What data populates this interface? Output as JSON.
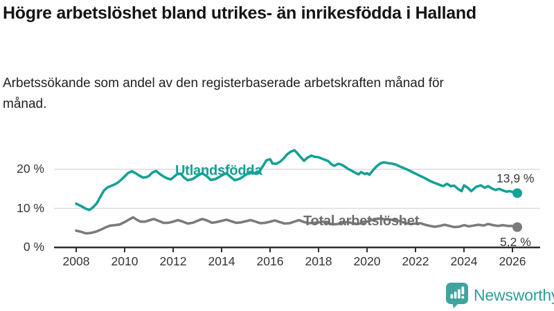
{
  "header": {
    "title": "Högre arbetslöshet bland utrikes- än inrikesfödda i Halland",
    "subtitle": "Arbetssökande som andel av den registerbaserade arbetskraften månad för månad."
  },
  "branding": {
    "logo_text": "Newsworthy",
    "logo_icon": "bar-chart-speech-bubble",
    "logo_color": "#41a39d",
    "logo_text_color": "#2f9c96"
  },
  "colors": {
    "teal": "#14a096",
    "gray": "#7b7b7b",
    "gray_label": "#6e6e6e",
    "grid": "#dcdcdc",
    "axis": "#2e2e2e",
    "tick_text": "#333333"
  },
  "chart_data": {
    "type": "line",
    "title": "Högre arbetslöshet bland utrikes- än inrikesfödda i Halland",
    "subtitle": "Arbetssökande som andel av den registerbaserade arbetskraften månad för månad.",
    "xlabel": "",
    "ylabel": "",
    "grid": "horizontal",
    "xlim": [
      2007.1,
      2027
    ],
    "ylim": [
      0,
      26
    ],
    "x_ticks": [
      2008,
      2010,
      2012,
      2014,
      2016,
      2018,
      2020,
      2022,
      2024,
      2026
    ],
    "y_ticks": [
      {
        "value": 0,
        "label": "0 %"
      },
      {
        "value": 10,
        "label": "10 %"
      },
      {
        "value": 20,
        "label": "20 %"
      }
    ],
    "series": [
      {
        "name": "Utlandsfödda",
        "color": "#14a096",
        "end_label": "13,9 %",
        "end_value": 13.9,
        "points": [
          [
            2008.0,
            11.2
          ],
          [
            2008.2,
            10.6
          ],
          [
            2008.4,
            9.9
          ],
          [
            2008.55,
            9.6
          ],
          [
            2008.7,
            10.3
          ],
          [
            2008.85,
            11.3
          ],
          [
            2009.0,
            13.0
          ],
          [
            2009.15,
            14.6
          ],
          [
            2009.3,
            15.4
          ],
          [
            2009.5,
            15.9
          ],
          [
            2009.7,
            16.5
          ],
          [
            2009.85,
            17.3
          ],
          [
            2010.0,
            18.2
          ],
          [
            2010.15,
            19.1
          ],
          [
            2010.3,
            19.5
          ],
          [
            2010.45,
            19.0
          ],
          [
            2010.6,
            18.4
          ],
          [
            2010.75,
            17.9
          ],
          [
            2010.9,
            18.0
          ],
          [
            2011.0,
            18.3
          ],
          [
            2011.15,
            19.2
          ],
          [
            2011.3,
            19.6
          ],
          [
            2011.45,
            18.8
          ],
          [
            2011.6,
            18.2
          ],
          [
            2011.75,
            17.7
          ],
          [
            2011.9,
            17.4
          ],
          [
            2012.0,
            17.9
          ],
          [
            2012.15,
            18.7
          ],
          [
            2012.3,
            18.9
          ],
          [
            2012.45,
            17.9
          ],
          [
            2012.6,
            17.2
          ],
          [
            2012.8,
            17.5
          ],
          [
            2013.0,
            18.3
          ],
          [
            2013.2,
            19.0
          ],
          [
            2013.4,
            18.2
          ],
          [
            2013.55,
            17.3
          ],
          [
            2013.75,
            17.5
          ],
          [
            2014.0,
            18.4
          ],
          [
            2014.2,
            19.0
          ],
          [
            2014.4,
            17.9
          ],
          [
            2014.55,
            17.2
          ],
          [
            2014.75,
            17.6
          ],
          [
            2015.0,
            18.6
          ],
          [
            2015.2,
            19.4
          ],
          [
            2015.4,
            18.9
          ],
          [
            2015.55,
            19.4
          ],
          [
            2015.7,
            20.8
          ],
          [
            2015.85,
            22.3
          ],
          [
            2016.0,
            22.6
          ],
          [
            2016.1,
            21.5
          ],
          [
            2016.25,
            21.4
          ],
          [
            2016.4,
            21.9
          ],
          [
            2016.55,
            22.7
          ],
          [
            2016.7,
            23.8
          ],
          [
            2016.85,
            24.5
          ],
          [
            2017.0,
            24.9
          ],
          [
            2017.1,
            24.3
          ],
          [
            2017.25,
            23.2
          ],
          [
            2017.4,
            22.2
          ],
          [
            2017.55,
            23.0
          ],
          [
            2017.7,
            23.5
          ],
          [
            2017.85,
            23.2
          ],
          [
            2018.0,
            23.1
          ],
          [
            2018.2,
            22.6
          ],
          [
            2018.4,
            22.1
          ],
          [
            2018.55,
            21.2
          ],
          [
            2018.65,
            20.9
          ],
          [
            2018.8,
            21.4
          ],
          [
            2018.9,
            21.3
          ],
          [
            2019.0,
            21.0
          ],
          [
            2019.2,
            20.2
          ],
          [
            2019.4,
            19.5
          ],
          [
            2019.55,
            19.0
          ],
          [
            2019.65,
            18.7
          ],
          [
            2019.75,
            19.3
          ],
          [
            2019.9,
            18.8
          ],
          [
            2020.0,
            19.0
          ],
          [
            2020.1,
            18.6
          ],
          [
            2020.25,
            19.8
          ],
          [
            2020.4,
            20.8
          ],
          [
            2020.55,
            21.5
          ],
          [
            2020.7,
            21.8
          ],
          [
            2020.85,
            21.6
          ],
          [
            2021.0,
            21.5
          ],
          [
            2021.2,
            21.2
          ],
          [
            2021.4,
            20.6
          ],
          [
            2021.6,
            20.1
          ],
          [
            2021.8,
            19.5
          ],
          [
            2022.0,
            18.9
          ],
          [
            2022.2,
            18.3
          ],
          [
            2022.4,
            17.7
          ],
          [
            2022.6,
            17.0
          ],
          [
            2022.8,
            16.5
          ],
          [
            2023.0,
            16.0
          ],
          [
            2023.15,
            15.7
          ],
          [
            2023.3,
            16.3
          ],
          [
            2023.45,
            15.7
          ],
          [
            2023.6,
            15.8
          ],
          [
            2023.75,
            15.0
          ],
          [
            2023.9,
            14.4
          ],
          [
            2024.0,
            15.9
          ],
          [
            2024.15,
            15.3
          ],
          [
            2024.3,
            14.4
          ],
          [
            2024.5,
            15.5
          ],
          [
            2024.7,
            15.9
          ],
          [
            2024.85,
            15.3
          ],
          [
            2025.0,
            15.7
          ],
          [
            2025.15,
            15.1
          ],
          [
            2025.3,
            14.7
          ],
          [
            2025.45,
            15.0
          ],
          [
            2025.6,
            14.6
          ],
          [
            2025.75,
            14.3
          ],
          [
            2025.9,
            14.4
          ],
          [
            2026.0,
            14.2
          ],
          [
            2026.2,
            13.9
          ]
        ]
      },
      {
        "name": "Total arbetslöshet",
        "color": "#7b7b7b",
        "end_label": "5,2 %",
        "end_value": 5.2,
        "points": [
          [
            2008.0,
            4.3
          ],
          [
            2008.2,
            4.0
          ],
          [
            2008.4,
            3.6
          ],
          [
            2008.6,
            3.7
          ],
          [
            2008.8,
            4.0
          ],
          [
            2009.0,
            4.5
          ],
          [
            2009.2,
            5.1
          ],
          [
            2009.4,
            5.6
          ],
          [
            2009.6,
            5.7
          ],
          [
            2009.8,
            5.9
          ],
          [
            2010.0,
            6.5
          ],
          [
            2010.2,
            7.2
          ],
          [
            2010.35,
            7.7
          ],
          [
            2010.5,
            7.1
          ],
          [
            2010.65,
            6.6
          ],
          [
            2010.85,
            6.6
          ],
          [
            2011.0,
            6.9
          ],
          [
            2011.2,
            7.3
          ],
          [
            2011.4,
            6.8
          ],
          [
            2011.6,
            6.3
          ],
          [
            2011.8,
            6.3
          ],
          [
            2012.0,
            6.6
          ],
          [
            2012.2,
            7.0
          ],
          [
            2012.4,
            6.6
          ],
          [
            2012.6,
            6.1
          ],
          [
            2012.8,
            6.3
          ],
          [
            2013.0,
            6.8
          ],
          [
            2013.2,
            7.3
          ],
          [
            2013.4,
            6.9
          ],
          [
            2013.6,
            6.3
          ],
          [
            2013.8,
            6.5
          ],
          [
            2014.0,
            6.8
          ],
          [
            2014.2,
            7.1
          ],
          [
            2014.4,
            6.7
          ],
          [
            2014.6,
            6.3
          ],
          [
            2014.8,
            6.4
          ],
          [
            2015.0,
            6.7
          ],
          [
            2015.2,
            7.0
          ],
          [
            2015.4,
            6.6
          ],
          [
            2015.6,
            6.2
          ],
          [
            2015.8,
            6.3
          ],
          [
            2016.0,
            6.6
          ],
          [
            2016.2,
            6.9
          ],
          [
            2016.4,
            6.5
          ],
          [
            2016.6,
            6.1
          ],
          [
            2016.8,
            6.2
          ],
          [
            2017.0,
            6.6
          ],
          [
            2017.2,
            7.0
          ],
          [
            2017.4,
            6.5
          ],
          [
            2017.6,
            6.2
          ],
          [
            2017.8,
            6.3
          ],
          [
            2018.0,
            6.4
          ],
          [
            2018.2,
            6.6
          ],
          [
            2018.4,
            6.2
          ],
          [
            2018.6,
            5.9
          ],
          [
            2018.8,
            6.0
          ],
          [
            2019.0,
            6.3
          ],
          [
            2019.2,
            6.5
          ],
          [
            2019.4,
            6.2
          ],
          [
            2019.6,
            6.0
          ],
          [
            2019.8,
            6.2
          ],
          [
            2020.0,
            6.6
          ],
          [
            2020.25,
            7.1
          ],
          [
            2020.5,
            7.4
          ],
          [
            2020.75,
            7.2
          ],
          [
            2021.0,
            7.1
          ],
          [
            2021.2,
            7.0
          ],
          [
            2021.4,
            6.6
          ],
          [
            2021.6,
            6.2
          ],
          [
            2021.8,
            6.0
          ],
          [
            2022.0,
            6.1
          ],
          [
            2022.2,
            6.2
          ],
          [
            2022.4,
            5.8
          ],
          [
            2022.6,
            5.5
          ],
          [
            2022.8,
            5.3
          ],
          [
            2023.0,
            5.5
          ],
          [
            2023.2,
            5.8
          ],
          [
            2023.4,
            5.5
          ],
          [
            2023.6,
            5.2
          ],
          [
            2023.8,
            5.3
          ],
          [
            2024.0,
            5.7
          ],
          [
            2024.2,
            5.4
          ],
          [
            2024.4,
            5.6
          ],
          [
            2024.6,
            5.8
          ],
          [
            2024.8,
            5.6
          ],
          [
            2025.0,
            6.0
          ],
          [
            2025.2,
            5.7
          ],
          [
            2025.4,
            5.5
          ],
          [
            2025.6,
            5.7
          ],
          [
            2025.8,
            5.5
          ],
          [
            2026.0,
            5.5
          ],
          [
            2026.2,
            5.2
          ]
        ]
      }
    ]
  }
}
